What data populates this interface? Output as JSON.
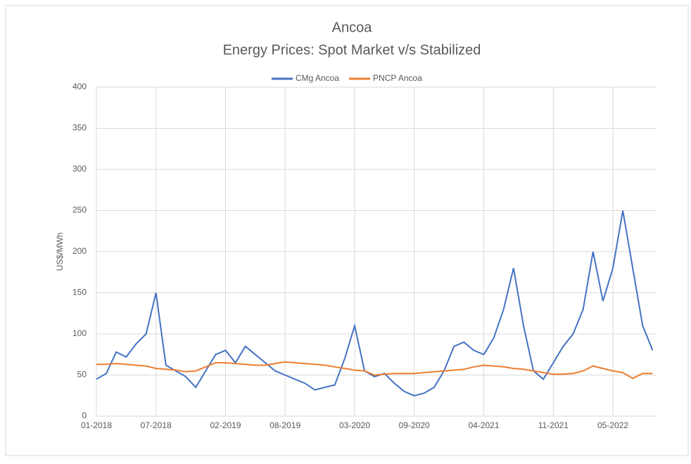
{
  "chart_data": {
    "type": "line",
    "title": "Ancoa",
    "subtitle": "Energy Prices: Spot Market v/s Stabilized",
    "ylabel": "US$/MWh",
    "x": [
      "01-2018",
      "02-2018",
      "03-2018",
      "04-2018",
      "05-2018",
      "06-2018",
      "07-2018",
      "08-2018",
      "09-2018",
      "10-2018",
      "11-2018",
      "12-2018",
      "01-2019",
      "02-2019",
      "03-2019",
      "04-2019",
      "05-2019",
      "06-2019",
      "07-2019",
      "08-2019",
      "09-2019",
      "10-2019",
      "11-2019",
      "12-2019",
      "01-2020",
      "02-2020",
      "03-2020",
      "04-2020",
      "05-2020",
      "06-2020",
      "07-2020",
      "08-2020",
      "09-2020",
      "10-2020",
      "11-2020",
      "12-2020",
      "01-2021",
      "02-2021",
      "03-2021",
      "04-2021",
      "05-2021",
      "06-2021",
      "07-2021",
      "08-2021",
      "09-2021",
      "10-2021",
      "11-2021",
      "12-2021",
      "01-2022",
      "02-2022",
      "03-2022",
      "04-2022",
      "05-2022",
      "06-2022",
      "07-2022",
      "08-2022",
      "09-2022"
    ],
    "series": [
      {
        "name": "CMg Ancoa",
        "color": "#4472c4",
        "values": [
          45,
          52,
          78,
          72,
          88,
          100,
          150,
          62,
          55,
          48,
          35,
          55,
          75,
          80,
          65,
          85,
          75,
          65,
          55,
          50,
          45,
          40,
          32,
          35,
          38,
          70,
          110,
          55,
          48,
          52,
          40,
          30,
          25,
          28,
          35,
          55,
          85,
          90,
          80,
          75,
          95,
          130,
          180,
          110,
          55,
          45,
          65,
          85,
          100,
          130,
          200,
          140,
          180,
          250,
          180,
          110,
          80
        ]
      },
      {
        "name": "PNCP Ancoa",
        "color": "#ed7d31",
        "values": [
          63,
          63,
          64,
          63,
          62,
          61,
          58,
          57,
          56,
          54,
          55,
          60,
          65,
          65,
          64,
          63,
          62,
          62,
          64,
          66,
          65,
          64,
          63,
          62,
          60,
          58,
          56,
          55,
          50,
          51,
          52,
          52,
          52,
          53,
          54,
          55,
          56,
          57,
          60,
          62,
          61,
          60,
          58,
          57,
          55,
          53,
          51,
          51,
          52,
          55,
          61,
          58,
          55,
          53,
          46,
          52,
          52
        ]
      }
    ],
    "xticks": [
      "01-2018",
      "07-2018",
      "02-2019",
      "08-2019",
      "03-2020",
      "09-2020",
      "04-2021",
      "11-2021",
      "05-2022"
    ],
    "ylim": [
      0,
      400
    ],
    "yticks": [
      0,
      50,
      100,
      150,
      200,
      250,
      300,
      350,
      400
    ],
    "grid": true,
    "legend": "top"
  }
}
